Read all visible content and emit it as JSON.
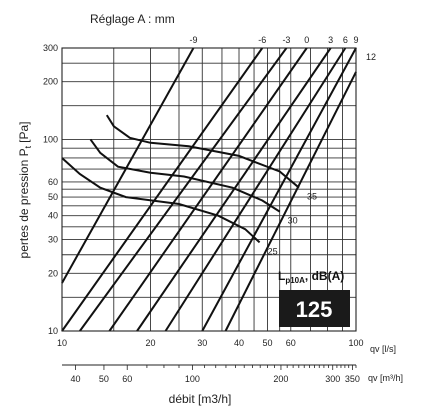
{
  "chart_data": {
    "type": "line",
    "title": "Réglage A : mm",
    "ylabel": "pertes de pression  P",
    "ylabel_subscript": "t",
    "ylabel_unit": "[Pa]",
    "xlabel": "débit [m3/h]",
    "x_scale": "log",
    "y_scale": "log",
    "xlim_ls": [
      10,
      100
    ],
    "ylim": [
      10,
      300
    ],
    "grid": true,
    "x_unit_top": "qv [l/s]",
    "x_unit_bottom": "qv [m³/h]",
    "x_ticks_ls": [
      "10",
      "20",
      "30",
      "40",
      "50",
      "60",
      "100"
    ],
    "x_ticks_m3h": [
      "40",
      "50",
      "60",
      "100",
      "200",
      "300",
      "350"
    ],
    "y_ticks": [
      "10",
      "20",
      "30",
      "40",
      "50",
      "60",
      "100",
      "200",
      "300"
    ],
    "settings": {
      "labels": [
        "-9",
        "-6",
        "-3",
        "0",
        "3",
        "6",
        "9",
        "12"
      ],
      "series": [
        {
          "label": "-9",
          "points": [
            [
              10,
              17.8
            ],
            [
              28,
              300
            ]
          ]
        },
        {
          "label": "-6",
          "points": [
            [
              10,
              10
            ],
            [
              48,
              300
            ]
          ]
        },
        {
          "label": "-3",
          "points": [
            [
              11.5,
              10
            ],
            [
              58,
              300
            ]
          ]
        },
        {
          "label": "0",
          "points": [
            [
              14.5,
              10
            ],
            [
              68,
              300
            ]
          ]
        },
        {
          "label": "3",
          "points": [
            [
              18,
              10
            ],
            [
              82,
              300
            ]
          ]
        },
        {
          "label": "6",
          "points": [
            [
              22.5,
              10
            ],
            [
              92,
              300
            ]
          ]
        },
        {
          "label": "9",
          "points": [
            [
              30,
              10
            ],
            [
              100,
              300
            ]
          ]
        },
        {
          "label": "12",
          "points": [
            [
              36,
              10
            ],
            [
              100,
              225
            ]
          ]
        }
      ]
    },
    "noise_curves": {
      "labels": [
        "35",
        "30",
        "25"
      ],
      "series": [
        {
          "label": "35",
          "points": [
            [
              14.2,
              134
            ],
            [
              15,
              117
            ],
            [
              17,
              102
            ],
            [
              20,
              96
            ],
            [
              27,
              92
            ],
            [
              40,
              82
            ],
            [
              55,
              68
            ],
            [
              64,
              56
            ]
          ]
        },
        {
          "label": "30",
          "points": [
            [
              12.5,
              100
            ],
            [
              13.5,
              85
            ],
            [
              15.5,
              72
            ],
            [
              20,
              67
            ],
            [
              26,
              64
            ],
            [
              38,
              56
            ],
            [
              48,
              48
            ],
            [
              55,
              42
            ]
          ]
        },
        {
          "label": "25",
          "points": [
            [
              10,
              80
            ],
            [
              11.5,
              66
            ],
            [
              13.5,
              56
            ],
            [
              16.5,
              50
            ],
            [
              25,
              46
            ],
            [
              34,
              40
            ],
            [
              42,
              34
            ],
            [
              47,
              29
            ]
          ]
        }
      ]
    },
    "lp_label": "L",
    "lp_subscript": "p10A",
    "lp_unit": ", dB(A)",
    "badge_value": "125"
  }
}
